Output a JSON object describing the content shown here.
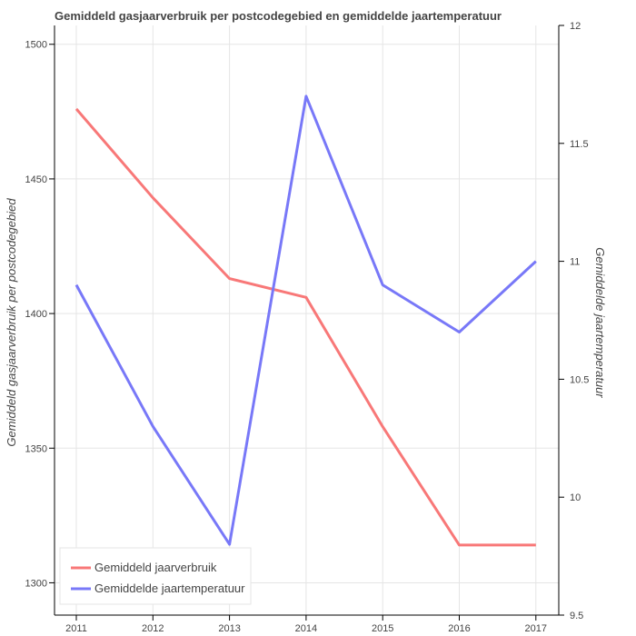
{
  "chart_data": {
    "type": "line",
    "title": "Gemiddeld gasjaarverbruik per postcodegebied en gemiddelde jaartemperatuur",
    "x": [
      "2011",
      "2012",
      "2013",
      "2014",
      "2015",
      "2016",
      "2017"
    ],
    "y_left_label": "Gemiddeld gasjaarverbruik per postcodegebied",
    "y_right_label": "Gemiddelde jaartemperatuur",
    "y_left_ticks": [
      "1300",
      "1350",
      "1400",
      "1450",
      "1500"
    ],
    "y_right_ticks": [
      "9.5",
      "10",
      "10.5",
      "11",
      "11.5",
      "12"
    ],
    "y_left_range": [
      1288,
      1507
    ],
    "y_right_range": [
      9.5,
      12.0
    ],
    "grid": true,
    "legend_position": "bottom-left",
    "series": [
      {
        "name": "Gemiddeld jaarverbruik",
        "axis": "left",
        "color": "#f87878",
        "values": [
          1476,
          1443,
          1413,
          1406,
          1358,
          1314,
          1314
        ]
      },
      {
        "name": "Gemiddelde jaartemperatuur",
        "axis": "right",
        "color": "#7878f8",
        "values": [
          10.9,
          10.3,
          9.8,
          11.7,
          10.9,
          10.7,
          11.0
        ]
      }
    ]
  }
}
